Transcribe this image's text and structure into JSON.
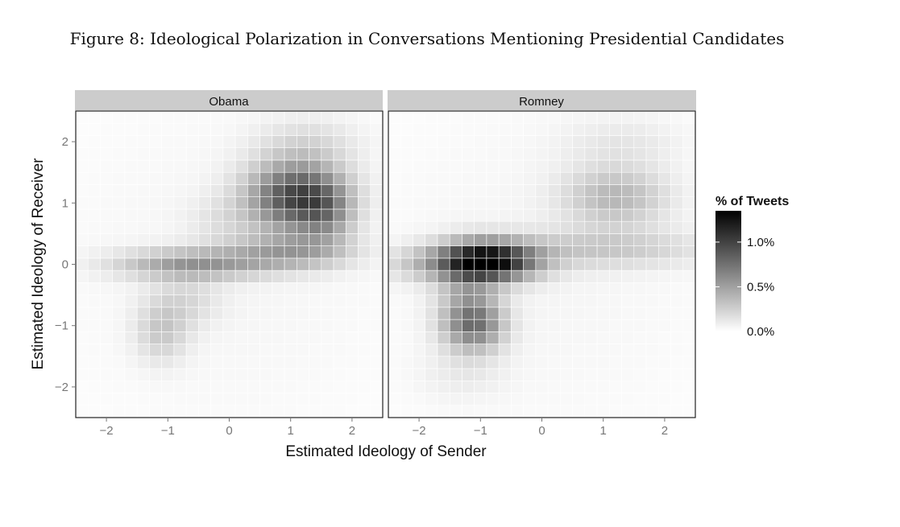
{
  "figure": {
    "caption": "Figure 8: Ideological Polarization in Conversations Mentioning Presidential Candidates"
  },
  "chart_data": {
    "type": "heatmap",
    "xlabel": "Estimated Ideology of Sender",
    "ylabel": "Estimated Ideology of Receiver",
    "xlim": [
      -2.5,
      2.5
    ],
    "ylim": [
      -2.5,
      2.5
    ],
    "x_ticks": [
      -2,
      -1,
      0,
      1,
      2
    ],
    "y_ticks": [
      -2,
      -1,
      0,
      1,
      2
    ],
    "x_tick_labels": [
      "−2",
      "−1",
      "0",
      "1",
      "2"
    ],
    "y_tick_labels": [
      "−2",
      "−1",
      "0",
      "1",
      "2"
    ],
    "bin_width": 0.2,
    "grid": true,
    "fill_scale": {
      "low": "#ffffff",
      "high": "#000000",
      "min": 0.0,
      "max": 1.35
    },
    "legend": {
      "title": "% of Tweets",
      "placement": "right",
      "breaks": [
        0.0,
        0.5,
        1.0
      ],
      "labels": [
        "0.0%",
        "0.5%",
        "1.0%"
      ]
    },
    "panels": [
      {
        "name": "Obama",
        "hotspots": [
          {
            "x": 1.1,
            "y": 1.1,
            "sx": 0.55,
            "sy": 0.4,
            "value": 0.95
          },
          {
            "x": 1.6,
            "y": 0.8,
            "sx": 0.3,
            "sy": 0.35,
            "value": 0.3
          },
          {
            "x": -0.6,
            "y": 0.0,
            "sx": 0.85,
            "sy": 0.17,
            "value": 0.5
          },
          {
            "x": 1.0,
            "y": 0.2,
            "sx": 0.7,
            "sy": 0.2,
            "value": 0.4
          },
          {
            "x": -0.1,
            "y": 0.7,
            "sx": 0.4,
            "sy": 0.3,
            "value": 0.1
          },
          {
            "x": -1.1,
            "y": -1.1,
            "sx": 0.3,
            "sy": 0.35,
            "value": 0.25
          },
          {
            "x": -0.7,
            "y": -0.6,
            "sx": 0.4,
            "sy": 0.3,
            "value": 0.15
          },
          {
            "x": 1.3,
            "y": 2.0,
            "sx": 0.6,
            "sy": 0.3,
            "value": 0.15
          },
          {
            "x": 0.0,
            "y": 0.0,
            "sx": 2.2,
            "sy": 2.2,
            "value": 0.05
          }
        ]
      },
      {
        "name": "Romney",
        "hotspots": [
          {
            "x": -0.9,
            "y": 0.05,
            "sx": 0.55,
            "sy": 0.22,
            "value": 1.35
          },
          {
            "x": 1.0,
            "y": 0.25,
            "sx": 1.2,
            "sy": 0.22,
            "value": 0.25
          },
          {
            "x": 1.2,
            "y": 1.1,
            "sx": 0.6,
            "sy": 0.35,
            "value": 0.35
          },
          {
            "x": -1.1,
            "y": -1.0,
            "sx": 0.35,
            "sy": 0.3,
            "value": 0.6
          },
          {
            "x": -1.2,
            "y": -0.5,
            "sx": 0.35,
            "sy": 0.45,
            "value": 0.3
          },
          {
            "x": -2.0,
            "y": 0.0,
            "sx": 0.5,
            "sy": 0.2,
            "value": 0.2
          },
          {
            "x": 1.3,
            "y": 2.0,
            "sx": 0.7,
            "sy": 0.3,
            "value": 0.1
          },
          {
            "x": -1.3,
            "y": -1.8,
            "sx": 0.5,
            "sy": 0.3,
            "value": 0.08
          },
          {
            "x": 0.0,
            "y": 0.0,
            "sx": 2.2,
            "sy": 2.2,
            "value": 0.05
          }
        ]
      }
    ]
  }
}
